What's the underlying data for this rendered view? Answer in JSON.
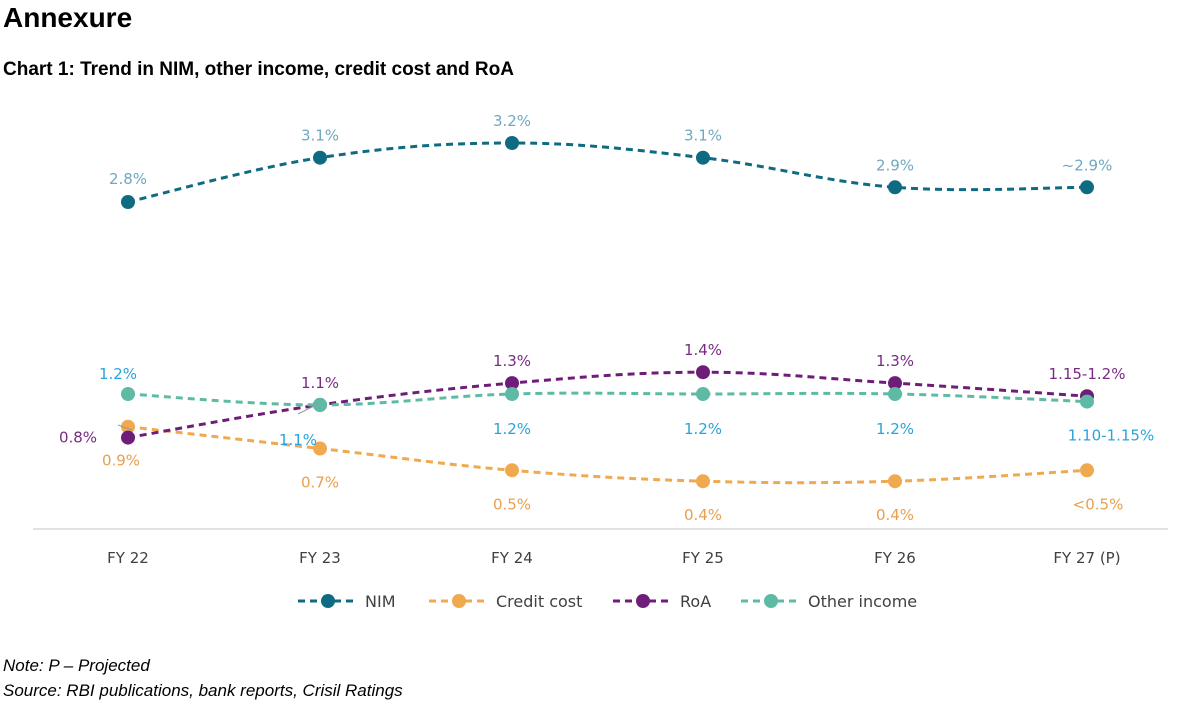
{
  "page": {
    "heading": "Annexure",
    "note": "Note: P – Projected",
    "source": "Source: RBI publications, bank reports, Crisil Ratings"
  },
  "chart_data": {
    "type": "line",
    "title": "Chart 1: Trend in NIM, other income, credit cost and RoA",
    "xlabel": "",
    "ylabel": "",
    "categories": [
      "FY 22",
      "FY 23",
      "FY 24",
      "FY 25",
      "FY 26",
      "FY 27 (P)"
    ],
    "grid": false,
    "legend": "bottom",
    "series": [
      {
        "name": "NIM",
        "color": "#0e6b82",
        "label_color": "#6fa9c0",
        "values": [
          2.8,
          3.1,
          3.2,
          3.1,
          2.9,
          2.9
        ],
        "labels": [
          "2.8%",
          "3.1%",
          "3.2%",
          "3.1%",
          "2.9%",
          "~2.9%"
        ]
      },
      {
        "name": "Credit cost",
        "color": "#f0a94e",
        "label_color": "#e8a04c",
        "values": [
          0.9,
          0.7,
          0.5,
          0.4,
          0.4,
          0.5
        ],
        "labels": [
          "0.9%",
          "0.7%",
          "0.5%",
          "0.4%",
          "0.4%",
          "<0.5%"
        ]
      },
      {
        "name": "RoA",
        "color": "#6e1e78",
        "label_color": "#7a2a85",
        "values": [
          0.8,
          1.1,
          1.3,
          1.4,
          1.3,
          1.18
        ],
        "labels": [
          "0.8%",
          "1.1%",
          "1.3%",
          "1.4%",
          "1.3%",
          "1.15-1.2%"
        ]
      },
      {
        "name": "Other income",
        "color": "#5dbba5",
        "label_color": "#2aa4d8",
        "values": [
          1.2,
          1.1,
          1.2,
          1.2,
          1.2,
          1.13
        ],
        "labels": [
          "1.2%",
          "1.1%",
          "1.2%",
          "1.2%",
          "1.2%",
          "1.10-1.15%"
        ]
      }
    ]
  }
}
